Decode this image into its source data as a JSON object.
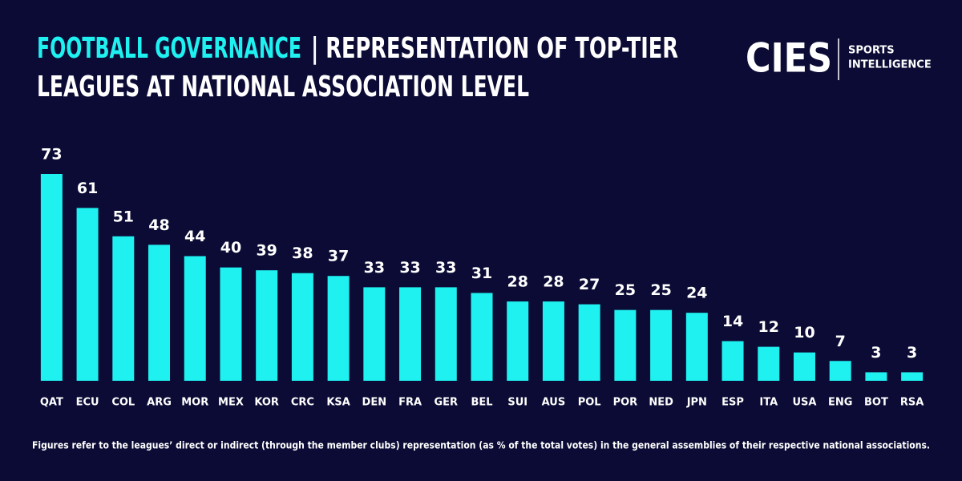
{
  "chart_data": {
    "type": "bar",
    "title": [
      "FOOTBALL GOVERNANCE",
      "| REPRESENTATION OF TOP-TIER",
      "LEAGUES AT NATIONAL ASSOCIATION LEVEL"
    ],
    "categories": [
      "QAT",
      "ECU",
      "COL",
      "ARG",
      "MOR",
      "MEX",
      "KOR",
      "CRC",
      "KSA",
      "DEN",
      "FRA",
      "GER",
      "BEL",
      "SUI",
      "AUS",
      "POL",
      "POR",
      "NED",
      "JPN",
      "ESP",
      "ITA",
      "USA",
      "ENG",
      "BOT",
      "RSA"
    ],
    "values": [
      73,
      61,
      51,
      48,
      44,
      40,
      39,
      38,
      37,
      33,
      33,
      33,
      31,
      28,
      28,
      27,
      25,
      25,
      24,
      14,
      12,
      10,
      7,
      3,
      3
    ],
    "color": "#1ff0f0",
    "note": "Figures refer to the leagues’ direct or indirect (through the member clubs) representation (as % of the total votes) in the general assemblies of their respective national associations."
  },
  "logo": {
    "name": "CIES",
    "tagline": [
      "SPORTS",
      "INTELLIGENCE"
    ]
  }
}
